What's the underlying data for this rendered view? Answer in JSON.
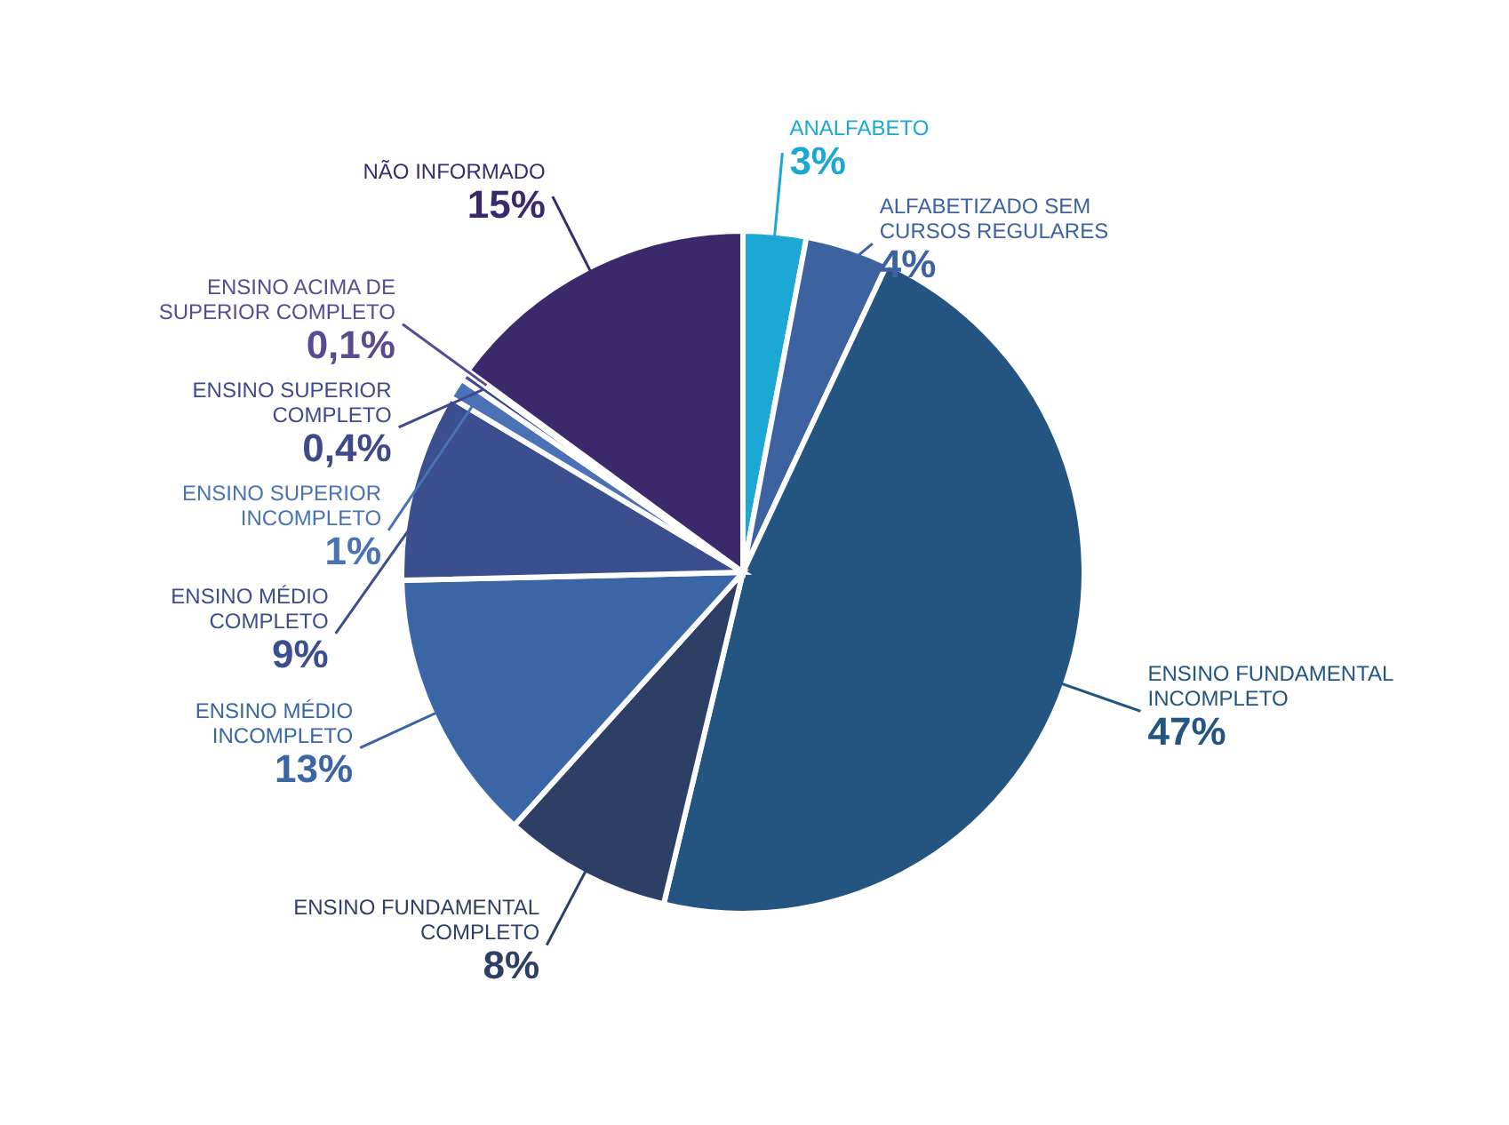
{
  "chart_data": {
    "type": "pie",
    "categories": [
      "ANALFABETO",
      "ALFABETIZADO SEM CURSOS REGULARES",
      "ENSINO FUNDAMENTAL INCOMPLETO",
      "ENSINO FUNDAMENTAL COMPLETO",
      "ENSINO MÉDIO INCOMPLETO",
      "ENSINO MÉDIO COMPLETO",
      "ENSINO SUPERIOR INCOMPLETO",
      "ENSINO SUPERIOR COMPLETO",
      "ENSINO ACIMA DE SUPERIOR COMPLETO",
      "NÃO INFORMADO"
    ],
    "values": [
      3,
      4,
      47,
      8,
      13,
      9,
      1,
      0.4,
      0.1,
      15
    ],
    "value_labels": [
      "3%",
      "4%",
      "47%",
      "8%",
      "13%",
      "9%",
      "1%",
      "0,4%",
      "0,1%",
      "15%"
    ],
    "colors": [
      "#1ba8d4",
      "#3d62a0",
      "#245580",
      "#2e3f66",
      "#3a66a6",
      "#3b4f8e",
      "#4a72b4",
      "#3f4a8c",
      "#5a4a92",
      "#3a2a6c"
    ],
    "legend": false
  }
}
